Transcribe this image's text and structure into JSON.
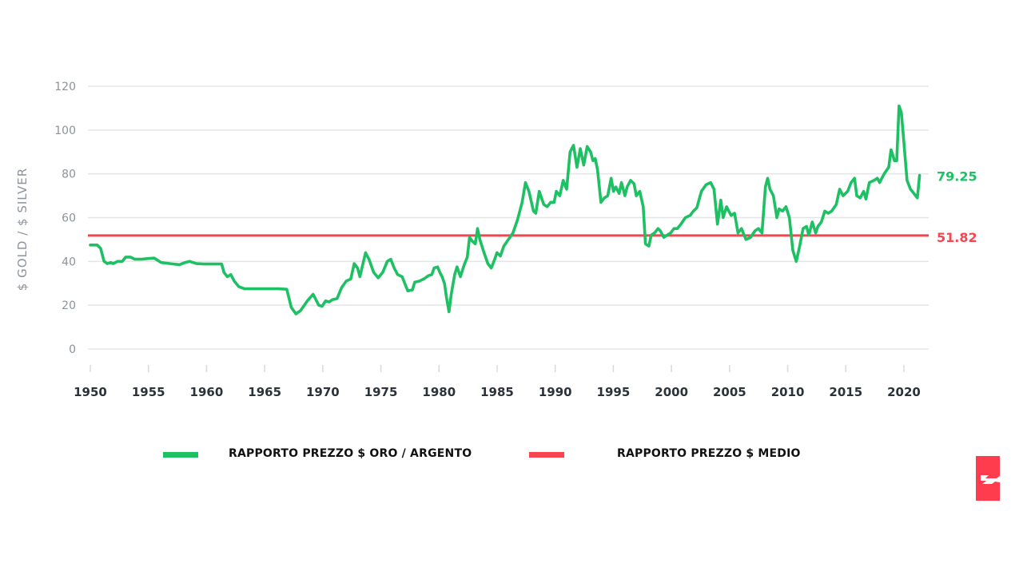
{
  "chart_data": {
    "type": "line",
    "title": "",
    "xlabel": "",
    "ylabel": "$ GOLD / $ SILVER",
    "ylim": [
      0,
      120
    ],
    "xlim": [
      1950,
      2021.5
    ],
    "y_ticks": [
      0,
      20,
      40,
      60,
      80,
      100,
      120
    ],
    "x_ticks": [
      1950,
      1955,
      1960,
      1965,
      1970,
      1975,
      1980,
      1985,
      1990,
      1995,
      2000,
      2005,
      2010,
      2015,
      2020
    ],
    "grid": true,
    "legend_position": "bottom",
    "series": [
      {
        "name": "RAPPORTO PREZZO $ ORO / ARGENTO",
        "color": "#1ec064",
        "last_value_label": "79.25",
        "points": [
          [
            1950.0,
            47.5
          ],
          [
            1950.6,
            47.5
          ],
          [
            1950.9,
            46
          ],
          [
            1951.2,
            40
          ],
          [
            1951.5,
            39
          ],
          [
            1951.8,
            39.5
          ],
          [
            1952.0,
            39
          ],
          [
            1952.4,
            40
          ],
          [
            1952.8,
            40
          ],
          [
            1953.1,
            42
          ],
          [
            1953.5,
            42
          ],
          [
            1953.9,
            41
          ],
          [
            1954.5,
            41
          ],
          [
            1955.0,
            41.3
          ],
          [
            1955.6,
            41.5
          ],
          [
            1956.2,
            39.5
          ],
          [
            1957.0,
            39
          ],
          [
            1957.8,
            38.5
          ],
          [
            1958.3,
            39.5
          ],
          [
            1958.7,
            40
          ],
          [
            1959.3,
            39
          ],
          [
            1960.0,
            38.8
          ],
          [
            1961.0,
            38.8
          ],
          [
            1961.5,
            38.8
          ],
          [
            1961.7,
            35
          ],
          [
            1962.0,
            33
          ],
          [
            1962.3,
            34
          ],
          [
            1962.6,
            31
          ],
          [
            1963.0,
            28.5
          ],
          [
            1963.5,
            27.5
          ],
          [
            1965.0,
            27.5
          ],
          [
            1966.5,
            27.5
          ],
          [
            1967.2,
            27.3
          ],
          [
            1967.6,
            19
          ],
          [
            1968.0,
            16
          ],
          [
            1968.4,
            17.5
          ],
          [
            1969.0,
            22
          ],
          [
            1969.5,
            25
          ],
          [
            1969.7,
            23
          ],
          [
            1970.0,
            20
          ],
          [
            1970.3,
            19.5
          ],
          [
            1970.6,
            22
          ],
          [
            1970.9,
            21.5
          ],
          [
            1971.2,
            22.5
          ],
          [
            1971.6,
            23
          ],
          [
            1972.0,
            28
          ],
          [
            1972.4,
            31
          ],
          [
            1972.8,
            32
          ],
          [
            1973.1,
            39
          ],
          [
            1973.4,
            37
          ],
          [
            1973.6,
            33
          ],
          [
            1974.1,
            44
          ],
          [
            1974.4,
            41
          ],
          [
            1974.8,
            35
          ],
          [
            1975.2,
            32.5
          ],
          [
            1975.6,
            35
          ],
          [
            1976.0,
            40
          ],
          [
            1976.3,
            41
          ],
          [
            1976.6,
            37
          ],
          [
            1976.9,
            34
          ],
          [
            1977.3,
            33
          ],
          [
            1977.6,
            29
          ],
          [
            1977.8,
            26.5
          ],
          [
            1978.2,
            27
          ],
          [
            1978.4,
            30.5
          ],
          [
            1978.8,
            31
          ],
          [
            1979.2,
            32
          ],
          [
            1979.6,
            33.5
          ],
          [
            1979.9,
            34
          ],
          [
            1980.1,
            37
          ],
          [
            1980.4,
            37.5
          ],
          [
            1980.6,
            35
          ],
          [
            1980.8,
            33
          ],
          [
            1981.0,
            30
          ],
          [
            1981.2,
            23
          ],
          [
            1981.4,
            17
          ],
          [
            1981.6,
            25
          ],
          [
            1981.9,
            34
          ],
          [
            1982.1,
            37.5
          ],
          [
            1982.4,
            33
          ],
          [
            1982.7,
            38
          ],
          [
            1983.0,
            42
          ],
          [
            1983.2,
            51
          ],
          [
            1983.4,
            49.5
          ],
          [
            1983.7,
            48
          ],
          [
            1983.9,
            55
          ],
          [
            1984.1,
            50
          ],
          [
            1984.4,
            45
          ],
          [
            1984.8,
            39
          ],
          [
            1985.1,
            37
          ],
          [
            1985.4,
            41
          ],
          [
            1985.6,
            44
          ],
          [
            1985.9,
            42.5
          ],
          [
            1986.2,
            47
          ],
          [
            1986.6,
            50
          ],
          [
            1987.0,
            53
          ],
          [
            1987.4,
            59
          ],
          [
            1987.8,
            67
          ],
          [
            1988.1,
            76
          ],
          [
            1988.4,
            72
          ],
          [
            1988.8,
            63
          ],
          [
            1989.0,
            62
          ],
          [
            1989.3,
            72
          ],
          [
            1989.7,
            66
          ],
          [
            1990.0,
            65
          ],
          [
            1990.3,
            67
          ],
          [
            1990.6,
            67
          ],
          [
            1990.8,
            72
          ],
          [
            1991.1,
            70
          ],
          [
            1991.4,
            77
          ],
          [
            1991.7,
            73
          ],
          [
            1992.0,
            90
          ],
          [
            1992.3,
            93
          ],
          [
            1992.6,
            83
          ],
          [
            1992.9,
            91.5
          ],
          [
            1993.2,
            84
          ],
          [
            1993.5,
            92.5
          ],
          [
            1993.8,
            90
          ],
          [
            1994.0,
            86
          ],
          [
            1994.2,
            87
          ],
          [
            1994.4,
            82
          ],
          [
            1994.7,
            67
          ],
          [
            1995.0,
            69
          ],
          [
            1995.3,
            70
          ],
          [
            1995.6,
            78
          ],
          [
            1995.8,
            72
          ],
          [
            1996.0,
            74
          ],
          [
            1996.3,
            71
          ],
          [
            1996.5,
            76
          ],
          [
            1996.8,
            70
          ],
          [
            1997.0,
            74
          ],
          [
            1997.3,
            77
          ],
          [
            1997.6,
            75.5
          ],
          [
            1997.8,
            70
          ],
          [
            1998.1,
            72
          ],
          [
            1998.4,
            65
          ],
          [
            1998.6,
            48
          ],
          [
            1998.9,
            47
          ],
          [
            1999.1,
            52
          ],
          [
            1999.4,
            53
          ],
          [
            1999.7,
            55
          ],
          [
            1999.9,
            54
          ],
          [
            2000.2,
            51
          ],
          [
            2000.5,
            52
          ],
          [
            2000.8,
            53
          ],
          [
            2001.1,
            55
          ],
          [
            2001.4,
            55
          ],
          [
            2001.7,
            57
          ],
          [
            2002.1,
            60
          ],
          [
            2002.5,
            61
          ],
          [
            2002.8,
            63
          ],
          [
            2003.1,
            64.5
          ],
          [
            2003.5,
            72
          ],
          [
            2003.9,
            75
          ],
          [
            2004.3,
            76
          ],
          [
            2004.6,
            73
          ],
          [
            2004.9,
            57
          ],
          [
            2005.2,
            68
          ],
          [
            2005.4,
            60
          ],
          [
            2005.7,
            65
          ],
          [
            2006.1,
            61
          ],
          [
            2006.4,
            62
          ],
          [
            2006.7,
            53
          ],
          [
            2007.0,
            55
          ],
          [
            2007.4,
            50
          ],
          [
            2007.8,
            51
          ],
          [
            2008.2,
            54
          ],
          [
            2008.5,
            55
          ],
          [
            2008.8,
            53
          ],
          [
            2009.1,
            74
          ],
          [
            2009.3,
            78
          ],
          [
            2009.5,
            73
          ],
          [
            2009.8,
            70
          ],
          [
            2010.1,
            60
          ],
          [
            2010.3,
            64
          ],
          [
            2010.6,
            63
          ],
          [
            2010.9,
            65
          ],
          [
            2011.2,
            60
          ],
          [
            2011.5,
            45
          ],
          [
            2011.8,
            40
          ],
          [
            2012.1,
            47
          ],
          [
            2012.4,
            55
          ],
          [
            2012.7,
            56
          ],
          [
            2012.9,
            52
          ],
          [
            2013.2,
            58
          ],
          [
            2013.5,
            53
          ],
          [
            2013.7,
            56
          ],
          [
            2014.0,
            58
          ],
          [
            2014.3,
            63
          ],
          [
            2014.6,
            62
          ],
          [
            2014.9,
            63
          ],
          [
            2015.3,
            66
          ],
          [
            2015.6,
            73
          ],
          [
            2015.9,
            70
          ],
          [
            2016.3,
            72
          ],
          [
            2016.6,
            76
          ],
          [
            2016.9,
            78
          ],
          [
            2017.1,
            70
          ],
          [
            2017.4,
            69
          ],
          [
            2017.7,
            72
          ],
          [
            2017.9,
            68.5
          ],
          [
            2018.2,
            76
          ],
          [
            2018.6,
            77
          ],
          [
            2018.9,
            78
          ],
          [
            2019.1,
            76
          ],
          [
            2019.5,
            80
          ],
          [
            2019.9,
            83
          ],
          [
            2020.1,
            91
          ],
          [
            2020.4,
            86
          ],
          [
            2020.6,
            86
          ],
          [
            2020.8,
            111
          ],
          [
            2021.0,
            108
          ],
          [
            2021.2,
            96
          ],
          [
            2021.5,
            77
          ],
          [
            2021.8,
            73
          ],
          [
            2022.1,
            71
          ],
          [
            2022.4,
            69
          ],
          [
            2022.6,
            79.25
          ]
        ]
      },
      {
        "name": "RAPPORTO PREZZO $ MEDIO",
        "color": "#f6454f",
        "last_value_label": "51.82",
        "constant_value": 51.82
      }
    ]
  },
  "legend": {
    "items": [
      {
        "label": "RAPPORTO PREZZO $ ORO / ARGENTO",
        "color": "#1ec064"
      },
      {
        "label": "RAPPORTO PREZZO $ MEDIO",
        "color": "#f6454f"
      }
    ]
  },
  "logo": {
    "color": "#ff3b4e",
    "icon": "lightning-bolt-icon"
  }
}
